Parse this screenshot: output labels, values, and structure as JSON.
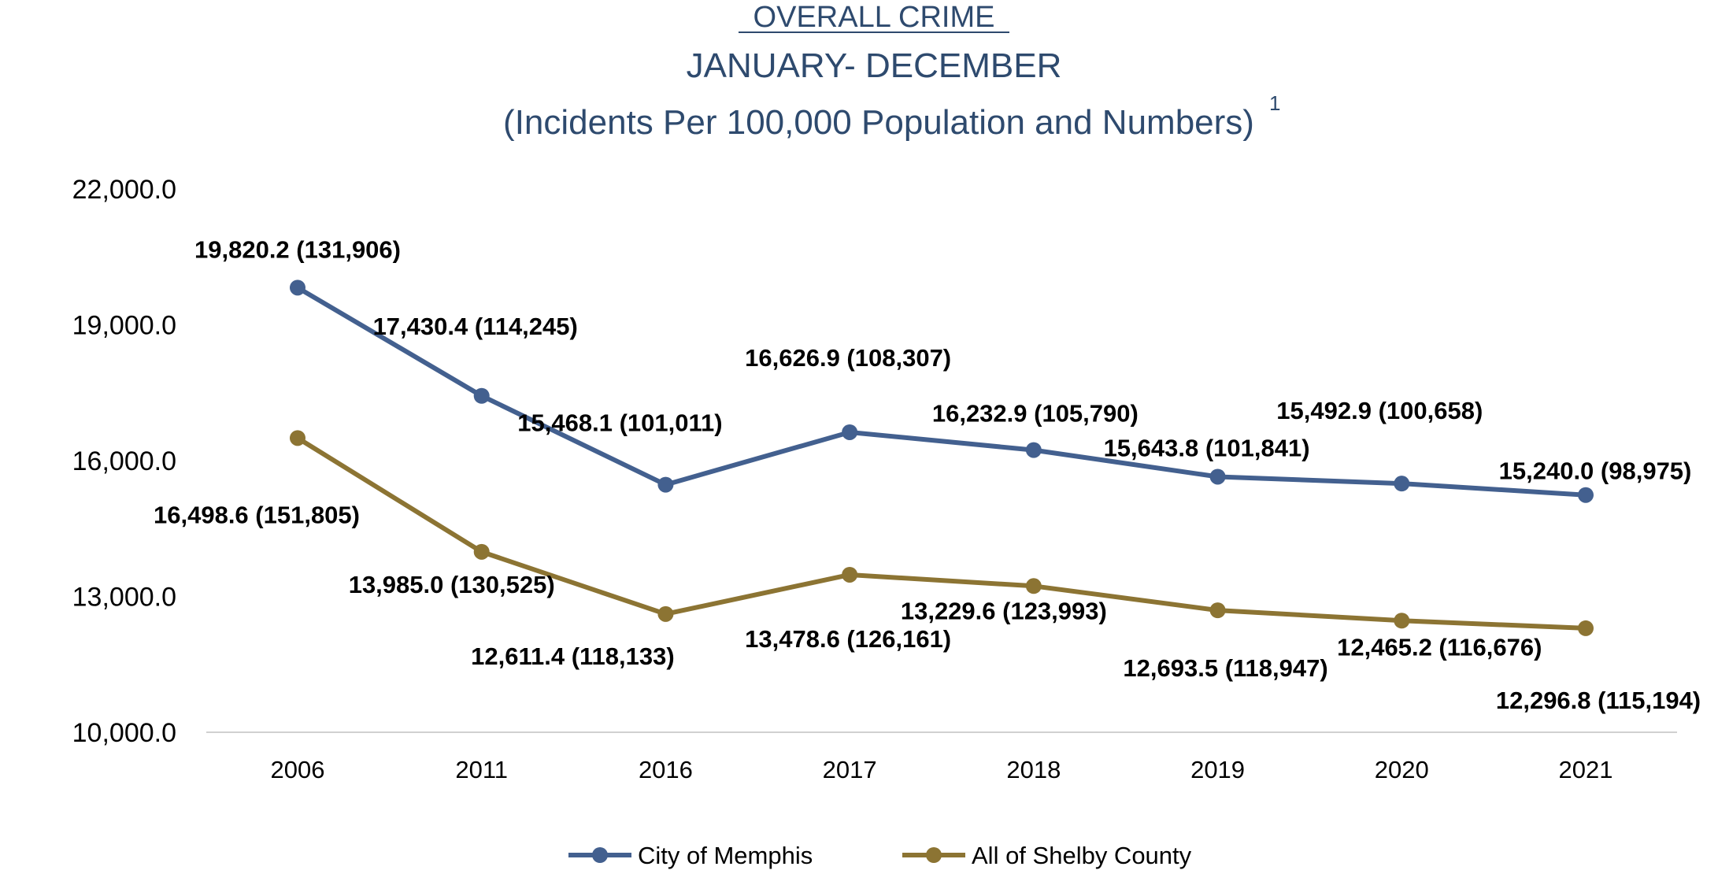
{
  "chart_data": {
    "type": "line",
    "title": "OVERALL CRIME",
    "subtitle": "JANUARY- DECEMBER",
    "subtitle2": "(Incidents Per 100,000 Population and Numbers)",
    "footnote_mark": "1",
    "categories": [
      "2006",
      "2011",
      "2016",
      "2017",
      "2018",
      "2019",
      "2020",
      "2021"
    ],
    "ylim": [
      10000,
      22000
    ],
    "yticks": [
      10000,
      13000,
      16000,
      19000,
      22000
    ],
    "ytick_labels": [
      "10,000.0",
      "13,000.0",
      "16,000.0",
      "19,000.0",
      "22,000.0"
    ],
    "grid": false,
    "legend_position": "bottom",
    "series": [
      {
        "name": "City of Memphis",
        "color": "#43608f",
        "values": [
          19820.2,
          17430.4,
          15468.1,
          16626.9,
          16232.9,
          15643.8,
          15492.9,
          15240.0
        ],
        "labels": [
          "19,820.2 (131,906)",
          "17,430.4 (114,245)",
          "15,468.1 (101,011)",
          "16,626.9  (108,307)",
          "16,232.9  (105,790)",
          "15,643.8 (101,841)",
          "15,492.9 (100,658)",
          "15,240.0  (98,975)"
        ]
      },
      {
        "name": "All of Shelby County",
        "color": "#8c7433",
        "values": [
          16498.6,
          13985.0,
          12611.4,
          13478.6,
          13229.6,
          12693.5,
          12465.2,
          12296.8
        ],
        "labels": [
          "16,498.6 (151,805)",
          "13,985.0 (130,525)",
          "12,611.4 (118,133)",
          "13,478.6 (126,161)",
          "13,229.6 (123,993)",
          "12,693.5 (118,947)",
          "12,465.2 (116,676)",
          "12,296.8  (115,194)"
        ]
      }
    ]
  }
}
